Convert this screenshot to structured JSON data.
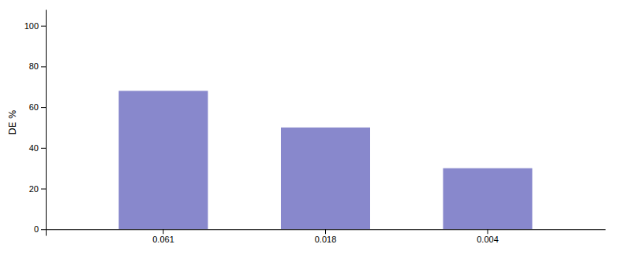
{
  "chart_data": {
    "type": "bar",
    "categories": [
      "0.061",
      "0.018",
      "0.004"
    ],
    "values": [
      68,
      50,
      30
    ],
    "color": "#8888CC",
    "ylabel": "DE %",
    "ylim": [
      -3,
      108
    ],
    "yticks": [
      0,
      20,
      40,
      60,
      80,
      100
    ]
  }
}
